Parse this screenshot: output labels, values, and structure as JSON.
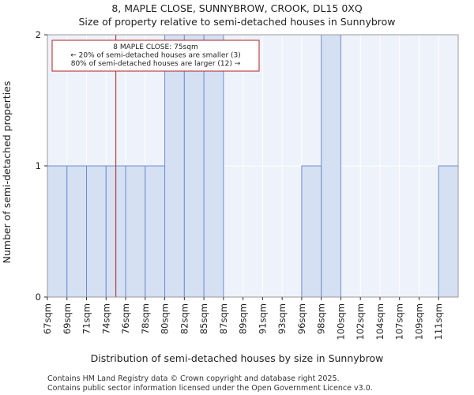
{
  "chart_data": {
    "type": "bar",
    "title": "8, MAPLE CLOSE, SUNNYBROW, CROOK, DL15 0XQ",
    "subtitle": "Size of property relative to semi-detached houses in Sunnybrow",
    "xlabel": "Distribution of semi-detached houses by size in Sunnybrow",
    "ylabel": "Number of semi-detached properties",
    "categories": [
      "67sqm",
      "69sqm",
      "71sqm",
      "74sqm",
      "76sqm",
      "78sqm",
      "80sqm",
      "82sqm",
      "85sqm",
      "87sqm",
      "89sqm",
      "91sqm",
      "93sqm",
      "96sqm",
      "98sqm",
      "100sqm",
      "102sqm",
      "104sqm",
      "107sqm",
      "109sqm",
      "111sqm"
    ],
    "values": [
      1,
      1,
      1,
      1,
      1,
      1,
      2,
      2,
      2,
      0,
      0,
      0,
      0,
      1,
      2,
      0,
      0,
      0,
      0,
      0,
      1
    ],
    "ylim": [
      0,
      2
    ],
    "yticks": [
      "0",
      "1",
      "2"
    ],
    "grid": true,
    "bar_color": "#d6e0f3",
    "bar_edge_color": "#6f8fd1",
    "marker": {
      "value_sqm": 75,
      "color": "#b22222",
      "lines": [
        "8 MAPLE CLOSE: 75sqm",
        "← 20% of semi-detached houses are smaller (3)",
        "80% of semi-detached houses are larger (12) →"
      ]
    }
  },
  "footer": [
    "Contains HM Land Registry data © Crown copyright and database right 2025.",
    "Contains public sector information licensed under the Open Government Licence v3.0."
  ]
}
